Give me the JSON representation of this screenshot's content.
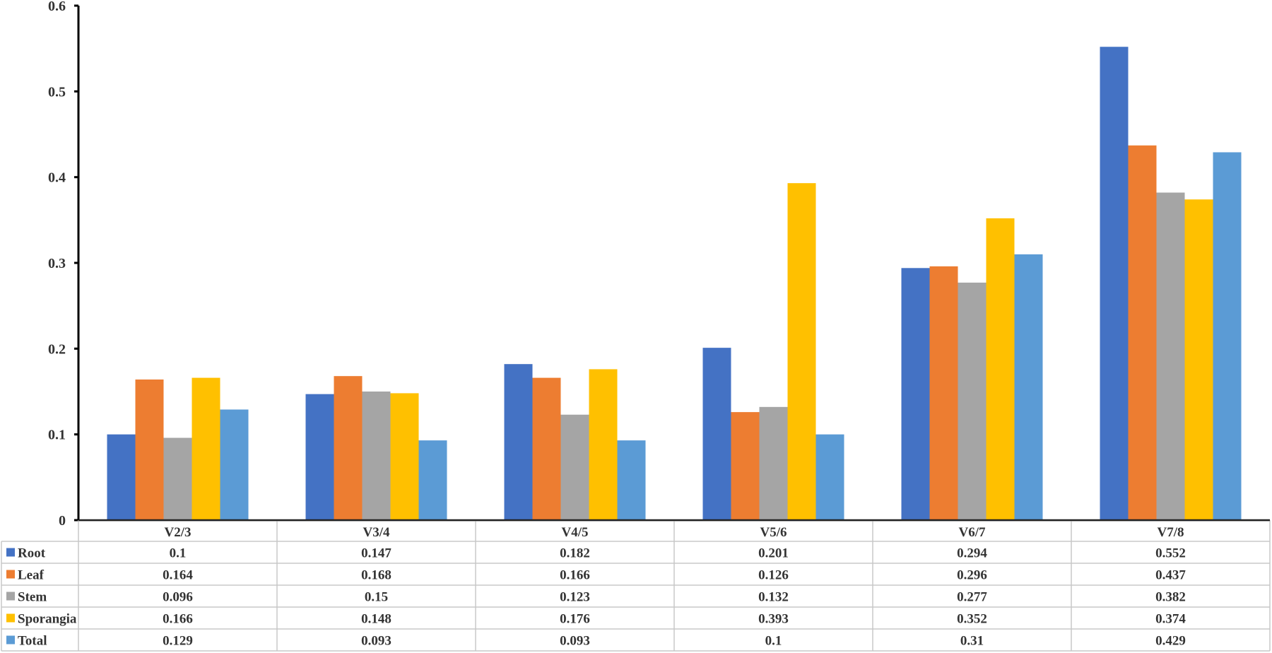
{
  "chart_data": {
    "type": "bar",
    "categories": [
      "V2/3",
      "V3/4",
      "V4/5",
      "V5/6",
      "V6/7",
      "V7/8"
    ],
    "series": [
      {
        "name": "Root",
        "color": "#4472C4",
        "values": [
          0.1,
          0.147,
          0.182,
          0.201,
          0.294,
          0.552
        ]
      },
      {
        "name": "Leaf",
        "color": "#ED7D31",
        "values": [
          0.164,
          0.168,
          0.166,
          0.126,
          0.296,
          0.437
        ]
      },
      {
        "name": "Stem",
        "color": "#A5A5A5",
        "values": [
          0.096,
          0.15,
          0.123,
          0.132,
          0.277,
          0.382
        ]
      },
      {
        "name": "Sporangia",
        "color": "#FFC000",
        "values": [
          0.166,
          0.148,
          0.176,
          0.393,
          0.352,
          0.374
        ]
      },
      {
        "name": "Total",
        "color": "#5B9BD5",
        "values": [
          0.129,
          0.093,
          0.093,
          0.1,
          0.31,
          0.429
        ]
      }
    ],
    "table_values": [
      [
        "0.1",
        "0.147",
        "0.182",
        "0.201",
        "0.294",
        "0.552"
      ],
      [
        "0.164",
        "0.168",
        "0.166",
        "0.126",
        "0.296",
        "0.437"
      ],
      [
        "0.096",
        "0.15",
        "0.123",
        "0.132",
        "0.277",
        "0.382"
      ],
      [
        "0.166",
        "0.148",
        "0.176",
        "0.393",
        "0.352",
        "0.374"
      ],
      [
        "0.129",
        "0.093",
        "0.093",
        "0.1",
        "0.31",
        "0.429"
      ]
    ],
    "ylim": [
      0,
      0.6
    ],
    "yticks": [
      "0",
      "0.1",
      "0.2",
      "0.3",
      "0.4",
      "0.5",
      "0.6"
    ],
    "grid": false,
    "legend": "data-table",
    "title": "",
    "xlabel": "",
    "ylabel": ""
  }
}
